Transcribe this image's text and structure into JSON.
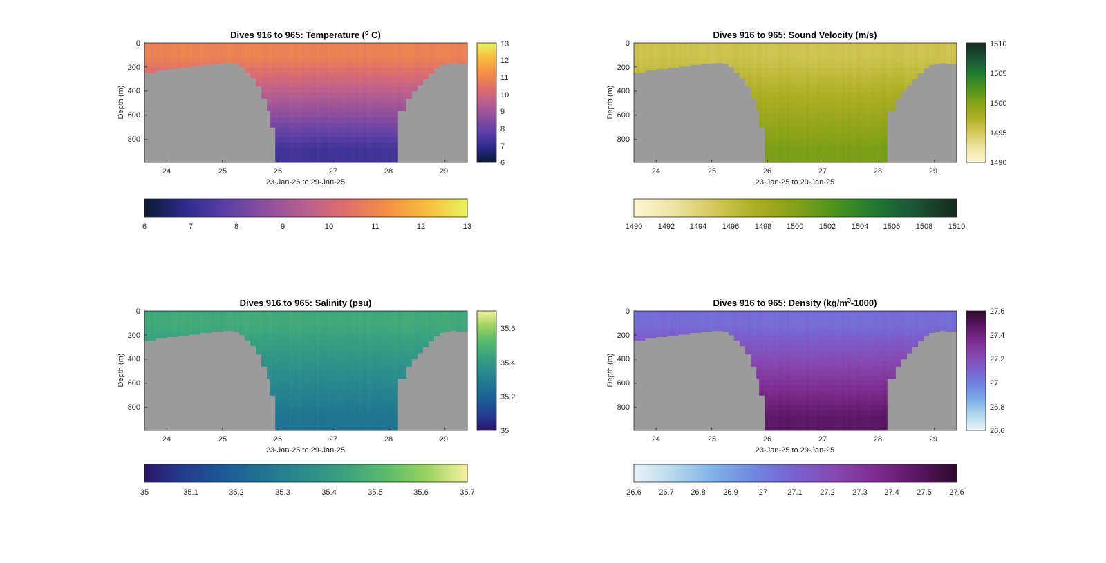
{
  "panels": [
    {
      "id": "temperature",
      "title": "Dives 916 to 965: Temperature (",
      "title_sup": "o",
      "title_end": " C)",
      "palette": [
        "#0b1a33",
        "#2d2a8c",
        "#5b3fa6",
        "#8c4f9e",
        "#b95f8f",
        "#e06f6b",
        "#f58f44",
        "#f7bd3d",
        "#e8f45c"
      ],
      "clim": [
        6,
        13
      ],
      "side_ticks": [
        "6",
        "7",
        "8",
        "9",
        "10",
        "11",
        "12",
        "13"
      ],
      "h_ticks": [
        "6",
        "7",
        "8",
        "9",
        "10",
        "11",
        "12",
        "13"
      ],
      "surface_value": 10.9,
      "deep_value": 7.3
    },
    {
      "id": "sound_velocity",
      "title": "Dives 916 to 965: Sound Velocity (m/s)",
      "title_sup": "",
      "title_end": "",
      "palette": [
        "#fdf7d3",
        "#eee3a0",
        "#d4c85a",
        "#aeae22",
        "#85a117",
        "#4a931c",
        "#1f7a33",
        "#1a5235",
        "#162a1e"
      ],
      "clim": [
        1490,
        1510
      ],
      "side_ticks": [
        "1490",
        "1495",
        "1500",
        "1505",
        "1510"
      ],
      "h_ticks": [
        "1490",
        "1492",
        "1494",
        "1496",
        "1498",
        "1500",
        "1502",
        "1504",
        "1506",
        "1508",
        "1510"
      ],
      "surface_value": 1495.5,
      "deep_value": 1500.5
    },
    {
      "id": "salinity",
      "title": "Dives 916 to 965: Salinity (psu)",
      "title_sup": "",
      "title_end": "",
      "palette": [
        "#2b1669",
        "#233d8f",
        "#1c5b96",
        "#207691",
        "#2b8d8c",
        "#3aa37f",
        "#5abb6b",
        "#9bd35d",
        "#f5f0a0"
      ],
      "clim": [
        35,
        35.7
      ],
      "side_ticks": [
        "35",
        "35.2",
        "35.4",
        "35.6"
      ],
      "h_ticks": [
        "35",
        "35.1",
        "35.2",
        "35.3",
        "35.4",
        "35.5",
        "35.6",
        "35.7"
      ],
      "surface_value": 35.46,
      "deep_value": 35.26
    },
    {
      "id": "density",
      "title": "Dives 916 to 965: Density (kg/m",
      "title_sup": "3",
      "title_end": "-1000)",
      "palette": [
        "#e8f3f7",
        "#b3d8ec",
        "#7eb0e6",
        "#6f86e0",
        "#7a61cf",
        "#8748b1",
        "#7e2c8e",
        "#5a1764",
        "#2c0a2c"
      ],
      "clim": [
        26.6,
        27.6
      ],
      "side_ticks": [
        "26.6",
        "26.8",
        "27",
        "27.2",
        "27.4",
        "27.6"
      ],
      "h_ticks": [
        "26.6",
        "26.7",
        "26.8",
        "26.9",
        "27",
        "27.1",
        "27.2",
        "27.3",
        "27.4",
        "27.5",
        "27.6"
      ],
      "surface_value": 27.06,
      "deep_value": 27.47
    }
  ],
  "shared": {
    "ylabel": "Depth (m)",
    "xlabel": "23-Jan-25 to 29-Jan-25",
    "y_ticks": [
      "0",
      "200",
      "400",
      "600",
      "800"
    ],
    "x_ticks": [
      "24",
      "25",
      "26",
      "27",
      "28",
      "29"
    ],
    "nodata_color": "#9b9b9b"
  },
  "chart_data": [
    {
      "type": "heatmap",
      "title": "Dives 916 to 965: Temperature (o C)",
      "xlabel": "23-Jan-25 to 29-Jan-25",
      "ylabel": "Depth (m)",
      "xlim": [
        23.6,
        29.4
      ],
      "ylim": [
        990,
        0
      ],
      "colorbar_range": [
        6,
        13
      ],
      "surface_value": 10.9,
      "deep_value": 7.3
    },
    {
      "type": "heatmap",
      "title": "Dives 916 to 965: Sound Velocity (m/s)",
      "xlabel": "23-Jan-25 to 29-Jan-25",
      "ylabel": "Depth (m)",
      "xlim": [
        23.6,
        29.4
      ],
      "ylim": [
        990,
        0
      ],
      "colorbar_range": [
        1490,
        1510
      ],
      "surface_value": 1495.5,
      "deep_value": 1500.5
    },
    {
      "type": "heatmap",
      "title": "Dives 916 to 965: Salinity (psu)",
      "xlabel": "23-Jan-25 to 29-Jan-25",
      "ylabel": "Depth (m)",
      "xlim": [
        23.6,
        29.4
      ],
      "ylim": [
        990,
        0
      ],
      "colorbar_range": [
        35,
        35.7
      ],
      "surface_value": 35.46,
      "deep_value": 35.26
    },
    {
      "type": "heatmap",
      "title": "Dives 916 to 965: Density (kg/m3-1000)",
      "xlabel": "23-Jan-25 to 29-Jan-25",
      "ylabel": "Depth (m)",
      "xlim": [
        23.6,
        29.4
      ],
      "ylim": [
        990,
        0
      ],
      "colorbar_range": [
        26.6,
        27.6
      ],
      "surface_value": 27.06,
      "deep_value": 27.47
    }
  ],
  "dive_profile": {
    "x_days": [
      23.6,
      23.8,
      24.0,
      24.2,
      24.4,
      24.6,
      24.8,
      25.0,
      25.2,
      25.3,
      25.4,
      25.5,
      25.6,
      25.7,
      25.8,
      25.85,
      25.95,
      28.05,
      28.15,
      28.3,
      28.4,
      28.5,
      28.6,
      28.7,
      28.8,
      28.9,
      29.0,
      29.1,
      29.2,
      29.4
    ],
    "max_depth_m": [
      245,
      225,
      215,
      205,
      195,
      180,
      170,
      165,
      170,
      200,
      245,
      290,
      360,
      460,
      560,
      700,
      990,
      990,
      560,
      460,
      400,
      350,
      300,
      250,
      210,
      180,
      170,
      165,
      170,
      175
    ]
  }
}
